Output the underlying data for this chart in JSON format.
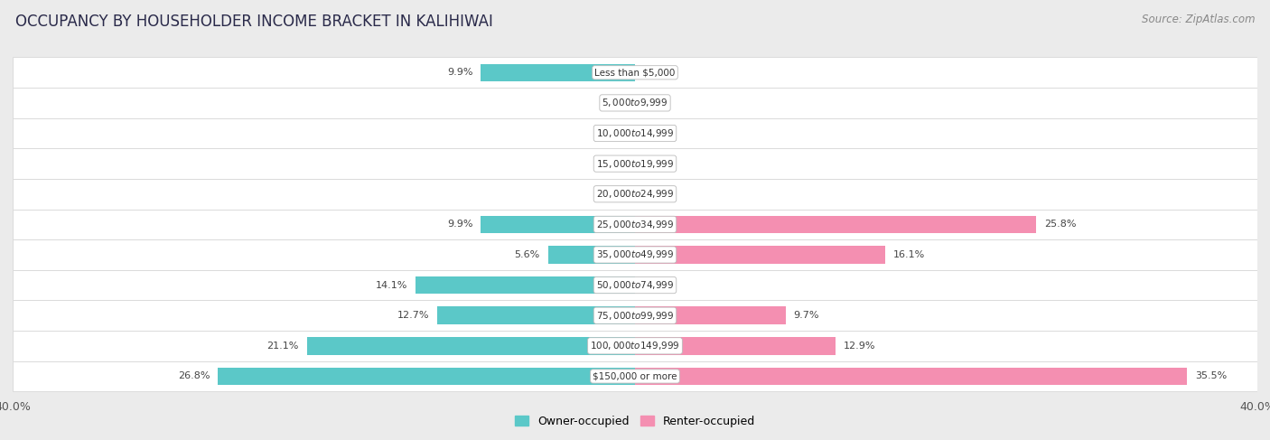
{
  "title": "OCCUPANCY BY HOUSEHOLDER INCOME BRACKET IN KALIHIWAI",
  "source": "Source: ZipAtlas.com",
  "categories": [
    "Less than $5,000",
    "$5,000 to $9,999",
    "$10,000 to $14,999",
    "$15,000 to $19,999",
    "$20,000 to $24,999",
    "$25,000 to $34,999",
    "$35,000 to $49,999",
    "$50,000 to $74,999",
    "$75,000 to $99,999",
    "$100,000 to $149,999",
    "$150,000 or more"
  ],
  "owner_values": [
    9.9,
    0.0,
    0.0,
    0.0,
    0.0,
    9.9,
    5.6,
    14.1,
    12.7,
    21.1,
    26.8
  ],
  "renter_values": [
    0.0,
    0.0,
    0.0,
    0.0,
    0.0,
    25.8,
    16.1,
    0.0,
    9.7,
    12.9,
    35.5
  ],
  "owner_color": "#5bc8c8",
  "renter_color": "#f48fb1",
  "background_color": "#ebebeb",
  "row_bg_color": "#ffffff",
  "row_edge_color": "#d8d8d8",
  "axis_max": 40.0,
  "title_fontsize": 12,
  "label_fontsize": 8,
  "cat_fontsize": 7.5,
  "tick_fontsize": 9,
  "source_fontsize": 8.5,
  "bar_height": 0.58,
  "legend_fontsize": 9
}
